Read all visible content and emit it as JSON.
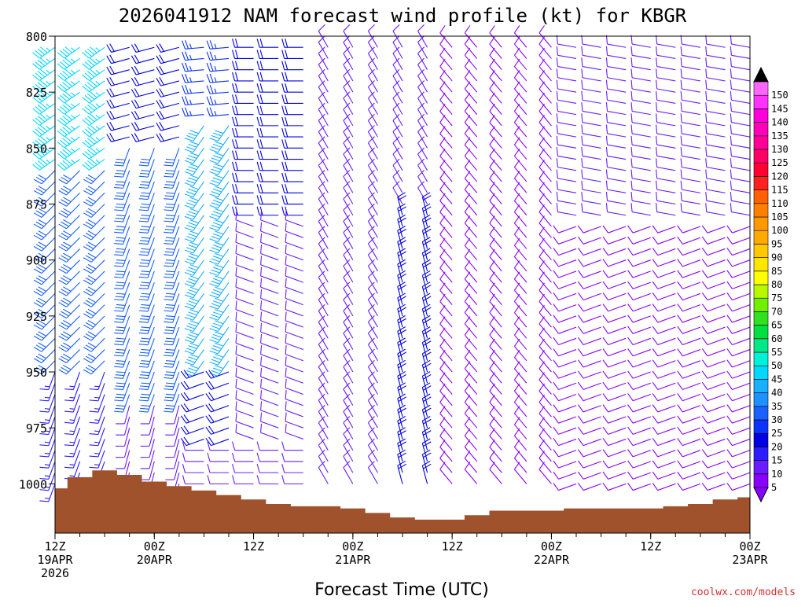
{
  "chart_data": {
    "type": "wind-barb-time-height",
    "title": "2026041912 NAM forecast wind profile (kt) for KBGR",
    "xlabel": "Forecast Time (UTC)",
    "credit": "coolwx.com/models",
    "y_axis": {
      "unit": "hPa",
      "ticks": [
        800,
        825,
        850,
        875,
        900,
        925,
        950,
        975,
        1000
      ],
      "ylim": [
        800,
        1022
      ],
      "levels": [
        805,
        810,
        815,
        820,
        825,
        830,
        835,
        840,
        845,
        850,
        855,
        860,
        865,
        870,
        875,
        880,
        885,
        890,
        895,
        900,
        905,
        910,
        915,
        920,
        925,
        930,
        935,
        940,
        945,
        950,
        955,
        960,
        965,
        970,
        975,
        980,
        985,
        990,
        995,
        1000
      ]
    },
    "x_axis": {
      "unit": "forecast hour",
      "xlim": [
        0,
        84
      ],
      "step_hours": 3,
      "ticks": [
        {
          "hour": 0,
          "lines": [
            "12Z",
            "19APR",
            "2026"
          ]
        },
        {
          "hour": 12,
          "lines": [
            "00Z",
            "20APR"
          ]
        },
        {
          "hour": 24,
          "lines": [
            "12Z"
          ]
        },
        {
          "hour": 36,
          "lines": [
            "00Z",
            "21APR"
          ]
        },
        {
          "hour": 48,
          "lines": [
            "12Z"
          ]
        },
        {
          "hour": 60,
          "lines": [
            "00Z",
            "22APR"
          ]
        },
        {
          "hour": 72,
          "lines": [
            "12Z"
          ]
        },
        {
          "hour": 84,
          "lines": [
            "00Z",
            "23APR"
          ]
        }
      ]
    },
    "surface_pressure": {
      "hours": [
        0,
        3,
        6,
        9,
        12,
        15,
        18,
        21,
        24,
        27,
        30,
        33,
        36,
        39,
        42,
        45,
        48,
        51,
        54,
        57,
        60,
        63,
        66,
        69,
        72,
        75,
        78,
        81,
        84
      ],
      "values": [
        1002,
        997,
        994,
        996,
        999,
        1001,
        1003,
        1005,
        1007,
        1009,
        1010,
        1010,
        1011,
        1013,
        1015,
        1016,
        1016,
        1014,
        1012,
        1012,
        1012,
        1011,
        1011,
        1011,
        1011,
        1010,
        1009,
        1007,
        1006
      ],
      "color": "#a0522d"
    },
    "wind_regimes": [
      {
        "hours": [
          0,
          6
        ],
        "levels": [
          805,
          855
        ],
        "dir": 235,
        "speed": 45
      },
      {
        "hours": [
          0,
          6
        ],
        "levels": [
          860,
          945
        ],
        "dir": 225,
        "speed": 32
      },
      {
        "hours": [
          0,
          6
        ],
        "levels": [
          950,
          1000
        ],
        "dir": 200,
        "speed": 15
      },
      {
        "hours": [
          9,
          15
        ],
        "levels": [
          805,
          845
        ],
        "dir": 255,
        "speed": 20
      },
      {
        "hours": [
          9,
          15
        ],
        "levels": [
          850,
          960
        ],
        "dir": 200,
        "speed": 30
      },
      {
        "hours": [
          9,
          15
        ],
        "levels": [
          965,
          1000
        ],
        "dir": 195,
        "speed": 12
      },
      {
        "hours": [
          18,
          21
        ],
        "levels": [
          805,
          835
        ],
        "dir": 265,
        "speed": 25
      },
      {
        "hours": [
          18,
          21
        ],
        "levels": [
          840,
          945
        ],
        "dir": 215,
        "speed": 42
      },
      {
        "hours": [
          18,
          21
        ],
        "levels": [
          950,
          980
        ],
        "dir": 250,
        "speed": 20
      },
      {
        "hours": [
          24,
          30
        ],
        "levels": [
          805,
          880
        ],
        "dir": 270,
        "speed": 20
      },
      {
        "hours": [
          24,
          30
        ],
        "levels": [
          885,
          980
        ],
        "dir": 290,
        "speed": 10
      },
      {
        "hours": [
          33,
          45
        ],
        "levels": [
          805,
          1000
        ],
        "dir": 330,
        "speed": 10
      },
      {
        "hours": [
          42,
          48
        ],
        "levels": [
          880,
          1000
        ],
        "dir": 345,
        "speed": 20
      },
      {
        "hours": [
          48,
          60
        ],
        "levels": [
          805,
          1000
        ],
        "dir": 320,
        "speed": 8
      },
      {
        "hours": [
          63,
          84
        ],
        "levels": [
          805,
          880
        ],
        "dir": 280,
        "speed": 10
      },
      {
        "hours": [
          63,
          84
        ],
        "levels": [
          885,
          1000
        ],
        "dir": 250,
        "speed": 8
      }
    ],
    "colorbar": {
      "labels": [
        5,
        10,
        15,
        20,
        25,
        30,
        35,
        40,
        45,
        50,
        55,
        60,
        65,
        70,
        75,
        80,
        85,
        90,
        95,
        100,
        105,
        110,
        115,
        120,
        125,
        130,
        135,
        140,
        145,
        150
      ],
      "colors": [
        "#8a00ff",
        "#6a1bff",
        "#2c1cff",
        "#0000e0",
        "#0b33ff",
        "#1a60ff",
        "#1e90ff",
        "#19b0ff",
        "#00d8ff",
        "#00f0d8",
        "#00e888",
        "#00e040",
        "#33e020",
        "#70f000",
        "#b8f800",
        "#ffff00",
        "#ffe600",
        "#ffc800",
        "#ffaa00",
        "#ff9900",
        "#ff8000",
        "#ff6000",
        "#ff2020",
        "#ff0033",
        "#ff0066",
        "#ff0099",
        "#ff00bb",
        "#ff00dd",
        "#ff33ff",
        "#ff66ff"
      ],
      "under_color": "#8a00ff",
      "over_color": "#000000"
    }
  }
}
